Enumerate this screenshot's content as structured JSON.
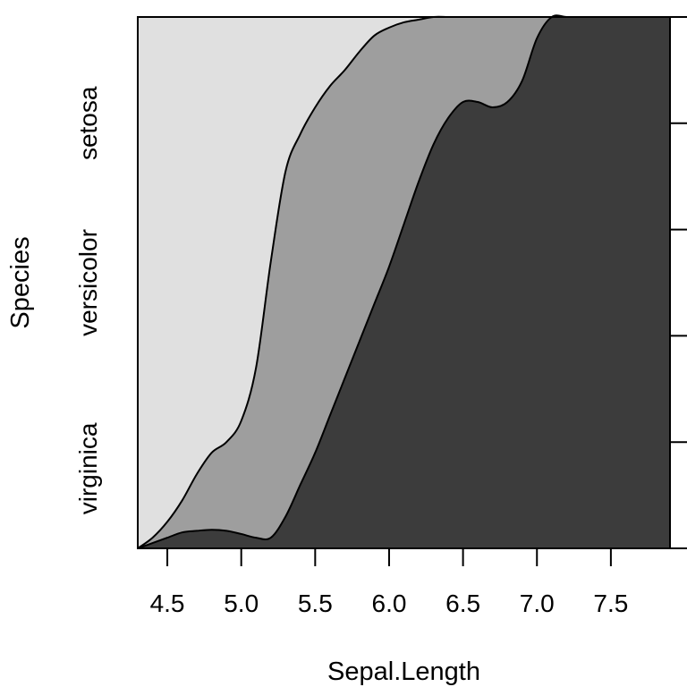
{
  "chart_data": {
    "type": "area",
    "subtype": "conditional-density-plot",
    "xlabel": "Sepal.Length",
    "ylabel": "Species",
    "xlim": [
      4.3,
      7.9
    ],
    "x_ticks": [
      "4.5",
      "5.0",
      "5.5",
      "6.0",
      "6.5",
      "7.0",
      "7.5"
    ],
    "x_tick_values": [
      4.5,
      5.0,
      5.5,
      6.0,
      6.5,
      7.0,
      7.5
    ],
    "ylim": [
      0,
      1
    ],
    "right_axis_ticks": [
      0.2,
      0.4,
      0.6,
      0.8
    ],
    "categories": [
      "setosa",
      "versicolor",
      "virginica"
    ],
    "category_label_positions": [
      0.8,
      0.5,
      0.15
    ],
    "fill_colors": {
      "setosa": "#e0e0e0",
      "versicolor": "#9e9e9e",
      "virginica": "#3c3c3c"
    },
    "x": [
      4.3,
      4.4,
      4.5,
      4.6,
      4.7,
      4.8,
      4.9,
      5.0,
      5.1,
      5.2,
      5.3,
      5.4,
      5.5,
      5.6,
      5.7,
      5.8,
      5.9,
      6.0,
      6.1,
      6.2,
      6.3,
      6.4,
      6.5,
      6.6,
      6.7,
      6.8,
      6.9,
      7.0,
      7.1,
      7.2,
      7.3,
      7.4,
      7.5,
      7.6,
      7.7,
      7.8,
      7.9
    ],
    "series": [
      {
        "name": "virginica",
        "cumulative_top": [
          0.0,
          0.01,
          0.02,
          0.03,
          0.033,
          0.035,
          0.033,
          0.027,
          0.02,
          0.02,
          0.06,
          0.12,
          0.18,
          0.25,
          0.32,
          0.39,
          0.46,
          0.53,
          0.61,
          0.69,
          0.76,
          0.81,
          0.84,
          0.84,
          0.83,
          0.84,
          0.88,
          0.96,
          1.0,
          1.0,
          1.0,
          1.0,
          1.0,
          1.0,
          1.0,
          1.0,
          1.0
        ]
      },
      {
        "name": "versicolor",
        "cumulative_top": [
          0.0,
          0.02,
          0.05,
          0.09,
          0.14,
          0.18,
          0.2,
          0.24,
          0.34,
          0.54,
          0.71,
          0.78,
          0.83,
          0.87,
          0.9,
          0.935,
          0.965,
          0.98,
          0.99,
          0.995,
          1.0,
          1.0,
          1.0,
          1.0,
          1.0,
          1.0,
          1.0,
          1.0,
          1.0,
          1.0,
          1.0,
          1.0,
          1.0,
          1.0,
          1.0,
          1.0,
          1.0
        ]
      },
      {
        "name": "setosa",
        "cumulative_top": [
          1.0,
          1.0,
          1.0,
          1.0,
          1.0,
          1.0,
          1.0,
          1.0,
          1.0,
          1.0,
          1.0,
          1.0,
          1.0,
          1.0,
          1.0,
          1.0,
          1.0,
          1.0,
          1.0,
          1.0,
          1.0,
          1.0,
          1.0,
          1.0,
          1.0,
          1.0,
          1.0,
          1.0,
          1.0,
          1.0,
          1.0,
          1.0,
          1.0,
          1.0,
          1.0,
          1.0,
          1.0
        ]
      }
    ],
    "grid": false,
    "legend": "none"
  }
}
